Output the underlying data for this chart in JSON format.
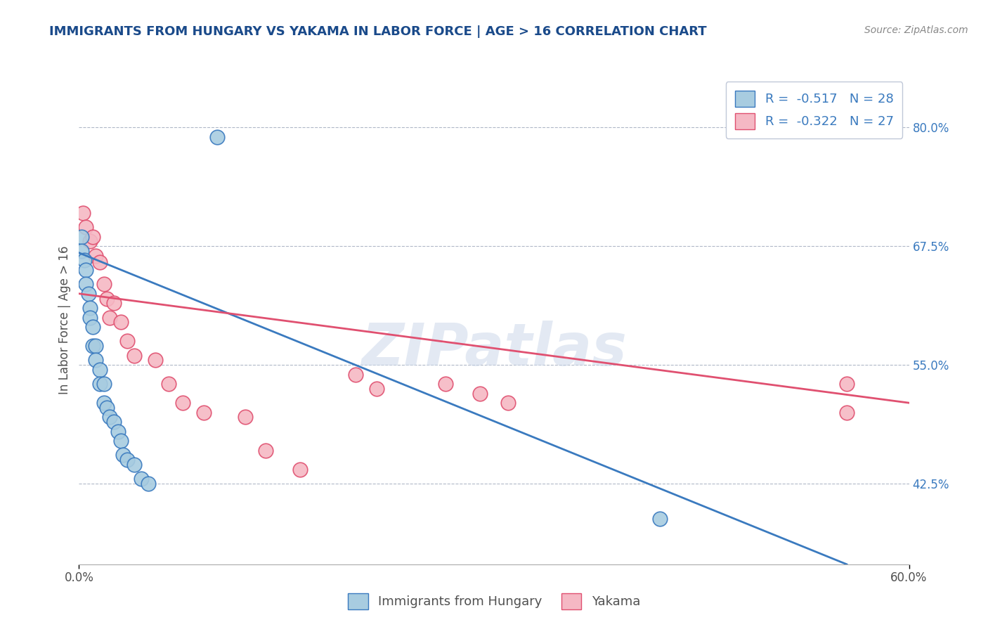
{
  "title": "IMMIGRANTS FROM HUNGARY VS YAKAMA IN LABOR FORCE | AGE > 16 CORRELATION CHART",
  "source": "Source: ZipAtlas.com",
  "xlabel_hungary": "Immigrants from Hungary",
  "xlabel_yakama": "Yakama",
  "ylabel": "In Labor Force | Age > 16",
  "xlim": [
    0.0,
    0.6
  ],
  "ylim": [
    0.34,
    0.855
  ],
  "xtick_positions": [
    0.0,
    0.6
  ],
  "xtick_labels": [
    "0.0%",
    "60.0%"
  ],
  "ytick_right": [
    0.425,
    0.55,
    0.675,
    0.8
  ],
  "ytick_right_labels": [
    "42.5%",
    "55.0%",
    "67.5%",
    "80.0%"
  ],
  "hungary_R": -0.517,
  "hungary_N": 28,
  "yakama_R": -0.322,
  "yakama_N": 27,
  "color_hungary": "#a8cce0",
  "color_yakama": "#f5b8c4",
  "color_hungary_line": "#3a7abf",
  "color_yakama_line": "#e05070",
  "hungary_scatter_x": [
    0.002,
    0.002,
    0.004,
    0.005,
    0.005,
    0.007,
    0.008,
    0.008,
    0.01,
    0.01,
    0.012,
    0.012,
    0.015,
    0.015,
    0.018,
    0.018,
    0.02,
    0.022,
    0.025,
    0.028,
    0.03,
    0.032,
    0.035,
    0.04,
    0.045,
    0.05,
    0.1,
    0.42
  ],
  "hungary_scatter_y": [
    0.685,
    0.67,
    0.66,
    0.65,
    0.635,
    0.625,
    0.61,
    0.6,
    0.59,
    0.57,
    0.57,
    0.555,
    0.545,
    0.53,
    0.53,
    0.51,
    0.505,
    0.495,
    0.49,
    0.48,
    0.47,
    0.455,
    0.45,
    0.445,
    0.43,
    0.425,
    0.79,
    0.388
  ],
  "yakama_scatter_x": [
    0.003,
    0.005,
    0.008,
    0.01,
    0.012,
    0.015,
    0.018,
    0.02,
    0.022,
    0.025,
    0.03,
    0.035,
    0.04,
    0.055,
    0.065,
    0.075,
    0.09,
    0.12,
    0.135,
    0.16,
    0.2,
    0.215,
    0.265,
    0.29,
    0.31,
    0.555,
    0.555
  ],
  "yakama_scatter_y": [
    0.71,
    0.695,
    0.68,
    0.685,
    0.665,
    0.658,
    0.635,
    0.62,
    0.6,
    0.615,
    0.595,
    0.575,
    0.56,
    0.555,
    0.53,
    0.51,
    0.5,
    0.495,
    0.46,
    0.44,
    0.54,
    0.525,
    0.53,
    0.52,
    0.51,
    0.53,
    0.5
  ],
  "hungary_trend_x": [
    0.0,
    0.555
  ],
  "hungary_trend_y": [
    0.668,
    0.34
  ],
  "yakama_trend_x": [
    0.0,
    0.6
  ],
  "yakama_trend_y": [
    0.625,
    0.51
  ],
  "watermark": "ZIPatlas",
  "background_color": "#ffffff",
  "grid_color": "#b0b8c8",
  "title_color": "#1a4a8a",
  "source_color": "#888888",
  "axis_label_color": "#505050",
  "right_tick_color": "#3a7abf"
}
